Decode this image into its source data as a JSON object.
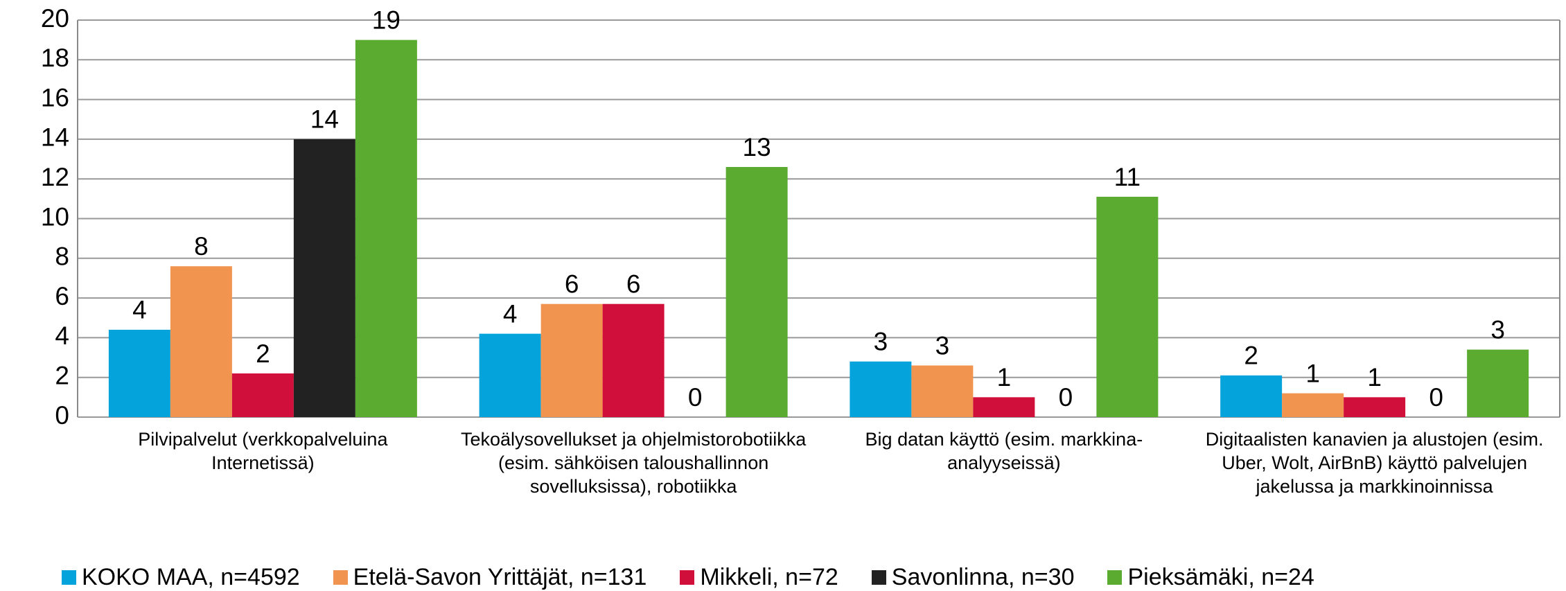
{
  "chart_data": {
    "type": "bar",
    "categories": [
      "Pilvipalvelut  (verkkopalveluina Internetissä)",
      "Tekoälysovellukset ja ohjelmistorobotiikka (esim. sähköisen taloushallinnon sovelluksissa), robotiikka",
      "Big datan käyttö (esim. markkina-analyyseissä)",
      "Digitaalisten kanavien ja alustojen (esim. Uber, Wolt, AirBnB) käyttö palvelujen jakelussa ja markkinoinnissa"
    ],
    "series": [
      {
        "name": "KOKO MAA, n=4592",
        "color": "#05a3dc",
        "values": [
          4.4,
          4.2,
          2.8,
          2.1
        ],
        "value_labels": [
          "4",
          "4",
          "3",
          "2"
        ]
      },
      {
        "name": "Etelä-Savon Yrittäjät, n=131",
        "color": "#f0944f",
        "values": [
          7.6,
          5.7,
          2.6,
          1.2
        ],
        "value_labels": [
          "8",
          "6",
          "3",
          "1"
        ]
      },
      {
        "name": "Mikkeli, n=72",
        "color": "#d0103a",
        "values": [
          2.2,
          5.7,
          1.0,
          1.0
        ],
        "value_labels": [
          "2",
          "6",
          "1",
          "1"
        ]
      },
      {
        "name": "Savonlinna, n=30",
        "color": "#222222",
        "values": [
          14.0,
          0,
          0,
          0
        ],
        "value_labels": [
          "14",
          "0",
          "0",
          "0"
        ]
      },
      {
        "name": "Pieksämäki, n=24",
        "color": "#5aab30",
        "values": [
          19.0,
          12.6,
          11.1,
          3.4
        ],
        "value_labels": [
          "19",
          "13",
          "11",
          "3"
        ]
      }
    ],
    "ylim": [
      0,
      20
    ],
    "yticks": [
      0,
      2,
      4,
      6,
      8,
      10,
      12,
      14,
      16,
      18,
      20
    ],
    "grid": true,
    "legend": "bottom"
  }
}
